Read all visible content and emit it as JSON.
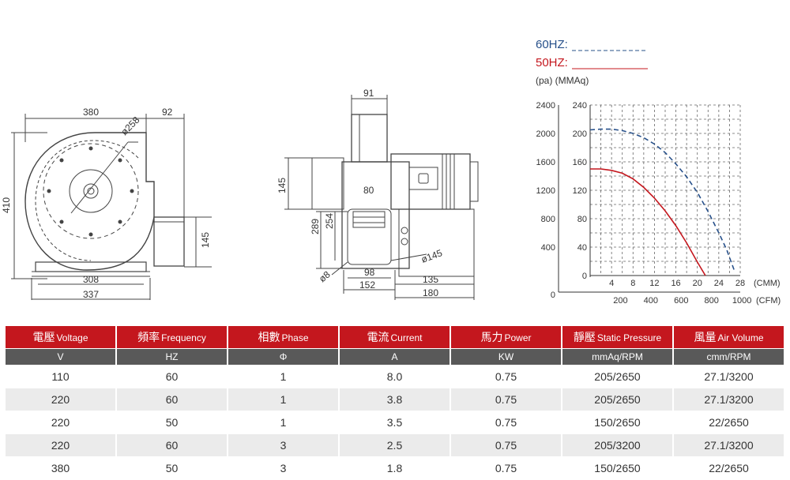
{
  "dimensions": {
    "front": {
      "width_top": "380",
      "side": "92",
      "diameter": "ø258",
      "height": "410",
      "outlet": "145",
      "base1": "308",
      "base2": "337"
    },
    "side": {
      "top": "91",
      "left": "145",
      "h1": "289",
      "h2": "254",
      "inlet": "80",
      "dia": "ø145",
      "hole": "ø8",
      "b1": "98",
      "b2": "152",
      "b3": "135",
      "b4": "180"
    }
  },
  "legend": {
    "hz60": "60HZ:",
    "hz50": "50HZ:",
    "units": "(pa) (MMAq)"
  },
  "chart_data": {
    "type": "line",
    "x_cmm_ticks": [
      "4",
      "8",
      "12",
      "16",
      "20",
      "24",
      "28"
    ],
    "x_cmm_label": "(CMM)",
    "x_cfm_ticks": [
      "200",
      "400",
      "600",
      "800",
      "1000"
    ],
    "x_cfm_label": "(CFM)",
    "y_pa_ticks": [
      "0",
      "400",
      "800",
      "1200",
      "1600",
      "2000",
      "2400"
    ],
    "y_mmaq_ticks": [
      "0",
      "40",
      "80",
      "120",
      "160",
      "200",
      "240"
    ],
    "series": [
      {
        "name": "60HZ",
        "color": "#27508a",
        "style": "dashed",
        "x": [
          0,
          2,
          4,
          6,
          8,
          10,
          12,
          14,
          16,
          18,
          20,
          22,
          24,
          25.5,
          27
        ],
        "y": [
          205,
          206,
          206,
          204,
          200,
          194,
          185,
          173,
          157,
          139,
          117,
          90,
          60,
          36,
          5
        ]
      },
      {
        "name": "50HZ",
        "color": "#c4171e",
        "style": "solid",
        "x": [
          0,
          2,
          4,
          6,
          8,
          10,
          12,
          14,
          16,
          18,
          20,
          21.5
        ],
        "y": [
          150,
          150,
          148,
          144,
          136,
          124,
          109,
          91,
          70,
          46,
          19,
          0
        ]
      }
    ],
    "xlim_cmm": [
      0,
      28
    ],
    "ylim_mmaq": [
      0,
      240
    ],
    "grid": true
  },
  "table": {
    "headers": [
      {
        "zh": "電壓",
        "en": "Voltage"
      },
      {
        "zh": "頻率",
        "en": "Frequency"
      },
      {
        "zh": "相數",
        "en": "Phase"
      },
      {
        "zh": "電流",
        "en": "Current"
      },
      {
        "zh": "馬力",
        "en": "Power"
      },
      {
        "zh": "靜壓",
        "en": "Static Pressure"
      },
      {
        "zh": "風量",
        "en": "Air Volume"
      }
    ],
    "units": [
      "V",
      "HZ",
      "Φ",
      "A",
      "KW",
      "mmAq/RPM",
      "cmm/RPM"
    ],
    "rows": [
      [
        "110",
        "60",
        "1",
        "8.0",
        "0.75",
        "205/2650",
        "27.1/3200"
      ],
      [
        "220",
        "60",
        "1",
        "3.8",
        "0.75",
        "205/2650",
        "27.1/3200"
      ],
      [
        "220",
        "50",
        "1",
        "3.5",
        "0.75",
        "150/2650",
        "22/2650"
      ],
      [
        "220",
        "60",
        "3",
        "2.5",
        "0.75",
        "205/3200",
        "27.1/3200"
      ],
      [
        "380",
        "50",
        "3",
        "1.8",
        "0.75",
        "150/2650",
        "22/2650"
      ]
    ]
  }
}
